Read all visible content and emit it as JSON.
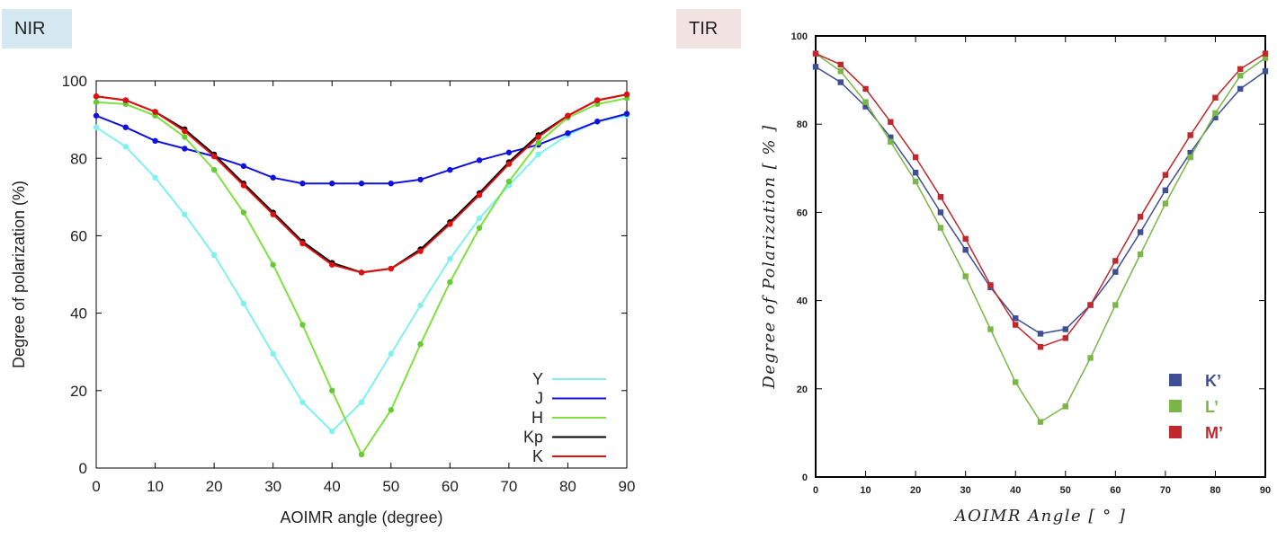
{
  "panels": {
    "nir": {
      "tag": "NIR"
    },
    "tir": {
      "tag": "TIR"
    }
  },
  "chart_data": [
    {
      "type": "line",
      "panel": "NIR",
      "title": "",
      "xlabel": "AOIMR angle (degree)",
      "ylabel": "Degree of polarization (%)",
      "xlim": [
        0,
        90
      ],
      "ylim": [
        0,
        100
      ],
      "xticks": [
        0,
        10,
        20,
        30,
        40,
        50,
        60,
        70,
        80,
        90
      ],
      "yticks": [
        0,
        20,
        40,
        60,
        80,
        100
      ],
      "legend_position": "bottom-right",
      "x": [
        0,
        5,
        10,
        15,
        20,
        25,
        30,
        35,
        40,
        45,
        50,
        55,
        60,
        65,
        70,
        75,
        80,
        85,
        90
      ],
      "series": [
        {
          "name": "Y",
          "color": "#80f0f0",
          "marker": "#80f0f0",
          "values": [
            88,
            83,
            75,
            65.5,
            55,
            42.5,
            29.5,
            17,
            9.5,
            17,
            29.5,
            42,
            54,
            64.5,
            73,
            81,
            86,
            89.5,
            91
          ]
        },
        {
          "name": "J",
          "color": "#1010e0",
          "marker": "#1010e0",
          "values": [
            91,
            88,
            84.5,
            82.5,
            80.5,
            78,
            75,
            73.5,
            73.5,
            73.5,
            73.5,
            74.5,
            77,
            79.5,
            81.5,
            83.5,
            86.5,
            89.5,
            91.5
          ]
        },
        {
          "name": "H",
          "color": "#80e040",
          "marker": "#66cc33",
          "values": [
            94.5,
            94,
            91,
            85.5,
            77,
            66,
            52.5,
            37,
            20,
            3.5,
            15,
            32,
            48,
            62,
            74,
            84,
            90.5,
            94,
            95.5
          ]
        },
        {
          "name": "Kp",
          "color": "#000000",
          "marker": "#000000",
          "values": [
            96,
            95,
            92,
            87.5,
            81,
            73.5,
            66,
            58.5,
            53,
            50.5,
            51.5,
            56.5,
            63.5,
            71,
            79,
            86,
            91,
            95,
            96.5
          ]
        },
        {
          "name": "K",
          "color": "#e01010",
          "marker": "#e01010",
          "values": [
            96,
            95,
            92,
            87,
            80.5,
            73,
            65.5,
            58,
            52.5,
            50.5,
            51.5,
            56,
            63,
            70.5,
            78.5,
            85.5,
            91,
            95,
            96.5
          ]
        }
      ]
    },
    {
      "type": "line",
      "panel": "TIR",
      "title": "",
      "xlabel": "AOIMR Angle [ ° ]",
      "ylabel": "Degree of Polarization [ % ]",
      "xlim": [
        0,
        90
      ],
      "ylim": [
        0,
        100
      ],
      "xticks": [
        0,
        10,
        20,
        30,
        40,
        50,
        60,
        70,
        80,
        90
      ],
      "yticks": [
        0,
        20,
        40,
        60,
        80,
        100
      ],
      "legend_position": "bottom-right",
      "x": [
        0,
        5,
        10,
        15,
        20,
        25,
        30,
        35,
        40,
        45,
        50,
        55,
        60,
        65,
        70,
        75,
        80,
        85,
        90
      ],
      "series": [
        {
          "name": "K’",
          "color": "#3f4f94",
          "marker": "#3f4f94",
          "values": [
            93,
            89.5,
            84,
            77,
            69,
            60,
            51.5,
            43,
            36,
            32.5,
            33.5,
            39,
            46.5,
            55.5,
            65,
            73.5,
            81.5,
            88,
            92
          ]
        },
        {
          "name": "L’",
          "color": "#7ab648",
          "marker": "#7ab648",
          "values": [
            96,
            92,
            85,
            76,
            67,
            56.5,
            45.5,
            33.5,
            21.5,
            12.5,
            16,
            27,
            39,
            50.5,
            62,
            72.5,
            82.5,
            91,
            95
          ]
        },
        {
          "name": "M’",
          "color": "#c0282d",
          "marker": "#c0282d",
          "values": [
            96,
            93.5,
            88,
            80.5,
            72.5,
            63.5,
            54,
            43.5,
            34.5,
            29.5,
            31.5,
            39,
            49,
            59,
            68.5,
            77.5,
            86,
            92.5,
            96
          ]
        }
      ]
    }
  ]
}
